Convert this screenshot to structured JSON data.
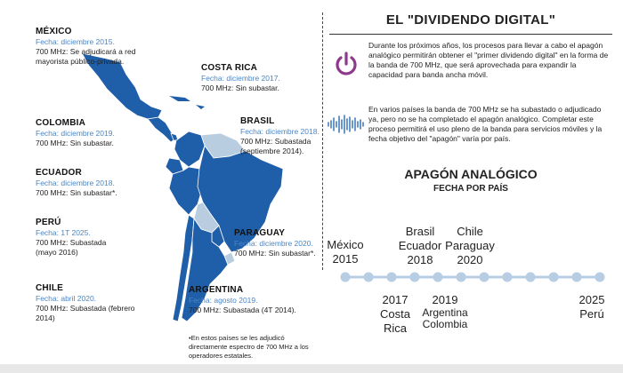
{
  "map": {
    "countries": [
      {
        "id": "mexico",
        "name": "MÉXICO",
        "date": "Fecha: diciembre 2015.",
        "desc": "700 MHz: Se adjudicará a red mayorista público-privada."
      },
      {
        "id": "costa-rica",
        "name": "COSTA RICA",
        "date": "Fecha: diciembre 2017.",
        "desc": "700 MHz: Sin subastar."
      },
      {
        "id": "colombia",
        "name": "COLOMBIA",
        "date": "Fecha: diciembre 2019.",
        "desc": "700 MHz: Sin subastar."
      },
      {
        "id": "brasil",
        "name": "BRASIL",
        "date": "Fecha: diciembre 2018.",
        "desc": "700 MHz: Subastada (septiembre 2014)."
      },
      {
        "id": "ecuador",
        "name": "ECUADOR",
        "date": "Fecha: diciembre 2018.",
        "desc": "700 MHz: Sin subastar*."
      },
      {
        "id": "peru",
        "name": "PERÚ",
        "date": "Fecha: 1T 2025.",
        "desc": "700 MHz: Subastada (mayo 2016)"
      },
      {
        "id": "paraguay",
        "name": "PARAGUAY",
        "date": "Fecha: diciembre 2020.",
        "desc": "700 MHz: Sin subastar*."
      },
      {
        "id": "chile",
        "name": "CHILE",
        "date": "Fecha: abril 2020.",
        "desc": "700 MHz: Subastada (febrero 2014)"
      },
      {
        "id": "argentina",
        "name": "ARGENTINA",
        "date": "Fecha: agosto 2019.",
        "desc": "700 MHz: Subastada (4T 2014)."
      }
    ],
    "footnote": "•En estos países se les adjudicó directamente espectro de 700 MHz a los operadores estatales.",
    "colors": {
      "land": "#1f5ea8",
      "land_light": "#b9cde0",
      "border": "#ffffff"
    }
  },
  "info": {
    "title": "EL \"DIVIDENDO DIGITAL\"",
    "para1": "Durante los próximos años, los procesos para llevar a cabo el apagón analógico permitirán obtener el \"primer dividendo digital\" en la forma de la banda de 700 MHz, que será aprovechada para expandir la capacidad para banda ancha móvil.",
    "para2": "En varios países la banda de 700 MHz se ha subastado o adjudicado ya, pero no se ha completado el apagón analógico. Completar este proceso permitirá el uso pleno de la banda para servicios móviles y la fecha objetivo del \"apagón\" varía por país.",
    "power_icon": "power-icon",
    "wave_icon": "soundwave-icon",
    "colors": {
      "power": "#8e3a8c",
      "wave": "#2a6bb3"
    }
  },
  "timeline": {
    "title": "APAGÓN ANALÓGICO",
    "subtitle": "FECHA POR PAÍS",
    "above": [
      {
        "id": "mexico-2015",
        "countries": "México",
        "year": "2015"
      },
      {
        "id": "2018",
        "countries": "Brasil\nEcuador",
        "year": "2018"
      },
      {
        "id": "2020",
        "countries": "Chile\nParaguay",
        "year": "2020"
      }
    ],
    "below": [
      {
        "id": "2017",
        "year": "2017",
        "countries": "Costa\nRica"
      },
      {
        "id": "2019",
        "year": "2019",
        "countries": "Argentina\nColombia"
      },
      {
        "id": "2025",
        "year": "2025",
        "countries": "Perú"
      }
    ],
    "dot_color": "#b6cde3",
    "line_color": "#b6cde3"
  }
}
